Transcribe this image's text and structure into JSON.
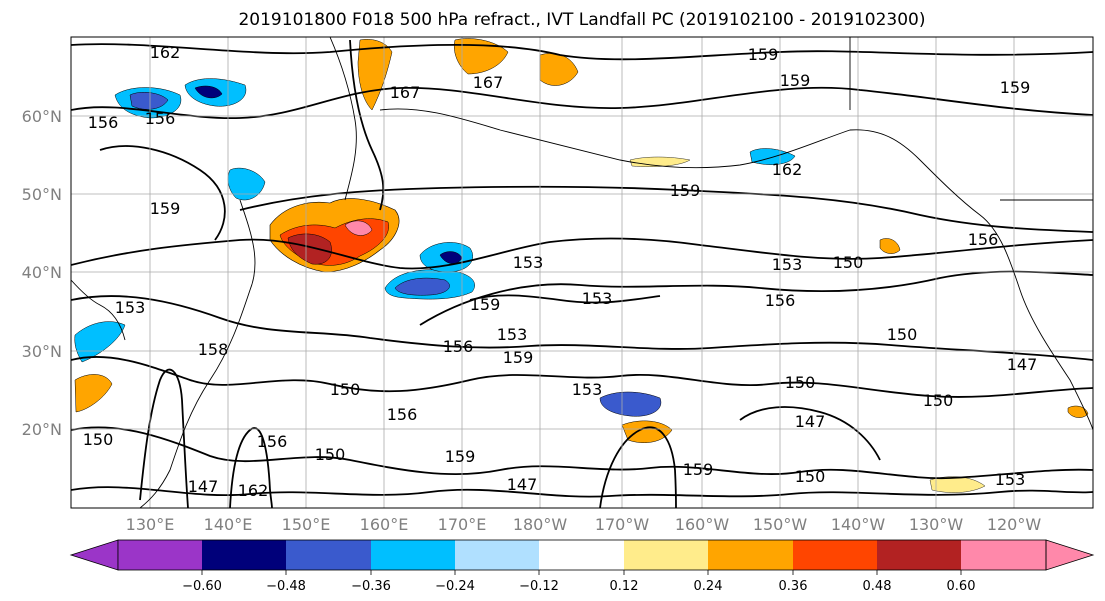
{
  "title": "2019101800 F018 500 hPa refract., IVT Landfall PC (2019102100 - 2019102300)",
  "lat_ticks": [
    "60°N",
    "50°N",
    "40°N",
    "30°N",
    "20°N"
  ],
  "lon_ticks": [
    "130°E",
    "140°E",
    "150°E",
    "160°E",
    "170°E",
    "180°W",
    "170°W",
    "160°W",
    "150°W",
    "140°W",
    "130°W",
    "120°W"
  ],
  "colorbar": {
    "colors": [
      "#9b35c8",
      "#00007a",
      "#3a5acd",
      "#00bfff",
      "#b0e0ff",
      "#ffffff",
      "#ffec8b",
      "#ffa500",
      "#ff4500",
      "#b22222",
      "#ff88aa"
    ],
    "ticks": [
      "−0.60",
      "−0.48",
      "−0.36",
      "−0.24",
      "−0.12",
      "0.12",
      "0.24",
      "0.36",
      "0.48",
      "0.60"
    ]
  },
  "contour_labels": [
    "162",
    "159",
    "159",
    "159",
    "167",
    "167",
    "156",
    "156",
    "159",
    "162",
    "159",
    "153",
    "153",
    "150",
    "153",
    "156",
    "156",
    "159",
    "153",
    "159",
    "156",
    "150",
    "150",
    "150",
    "156",
    "147",
    "150",
    "159",
    "147",
    "159",
    "150",
    "147",
    "150",
    "156",
    "153",
    "147",
    "162",
    "150",
    "158",
    "153",
    "153"
  ]
}
